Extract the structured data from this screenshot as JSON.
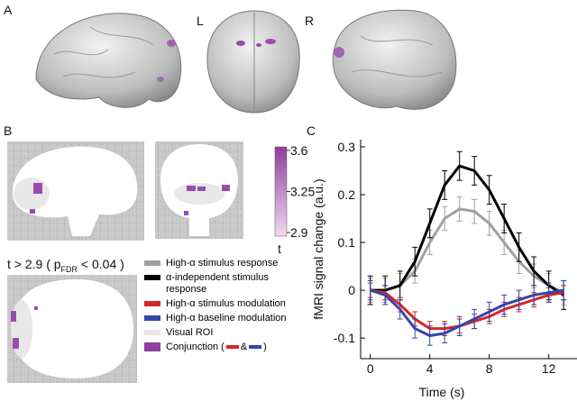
{
  "panel_labels": [
    "A",
    "B",
    "C"
  ],
  "hemisphere_labels": [
    "L",
    "R"
  ],
  "colorbar": {
    "lim": [
      2.87,
      3.63
    ],
    "ticks": [
      3.6,
      3.25,
      2.9
    ],
    "label": "t"
  },
  "threshold": {
    "prefix": "t > 2.9 ( p",
    "subscript": "FDR",
    "suffix": " < 0.04 )"
  },
  "legend_extra": [
    {
      "name": "Visual ROI",
      "color": "#e6e6e6"
    },
    {
      "name": "Conjunction (",
      "color": "#8e3fa0",
      "joiner": "&",
      "close": ")"
    }
  ],
  "chart_data": {
    "type": "line",
    "x_label": "Time (s)",
    "y_label": "fMRI signal change (a.u.)",
    "x": [
      0,
      1,
      2,
      3,
      4,
      5,
      6,
      7,
      8,
      9,
      10,
      11,
      12,
      13
    ],
    "xlim": [
      -0.65,
      13.9
    ],
    "xticks": [
      0,
      4,
      8,
      12
    ],
    "ylim": [
      -0.143,
      0.315
    ],
    "yticks": [
      -0.1,
      0,
      0.1,
      0.2,
      0.3
    ],
    "series": [
      {
        "name": "High-α stimulus response",
        "color": "#a0a0a0",
        "error": 0.025,
        "values": [
          0,
          0,
          0.01,
          0.04,
          0.1,
          0.15,
          0.17,
          0.165,
          0.14,
          0.1,
          0.06,
          0.03,
          0.01,
          -0.005
        ]
      },
      {
        "name": "α-independent stimulus response",
        "color": "#000000",
        "error": 0.03,
        "values": [
          0,
          0,
          0.01,
          0.06,
          0.14,
          0.22,
          0.26,
          0.25,
          0.21,
          0.15,
          0.09,
          0.04,
          0.01,
          -0.01
        ]
      },
      {
        "name": "High-α stimulus modulation",
        "color": "#d7252a",
        "error": 0.015,
        "values": [
          0,
          -0.005,
          -0.03,
          -0.06,
          -0.08,
          -0.08,
          -0.075,
          -0.065,
          -0.055,
          -0.04,
          -0.03,
          -0.02,
          -0.01,
          -0.005
        ]
      },
      {
        "name": "High-α baseline modulation",
        "color": "#3346a8",
        "error": 0.02,
        "values": [
          0,
          -0.01,
          -0.04,
          -0.08,
          -0.095,
          -0.09,
          -0.075,
          -0.06,
          -0.045,
          -0.03,
          -0.02,
          -0.01,
          -0.005,
          0
        ]
      }
    ]
  }
}
